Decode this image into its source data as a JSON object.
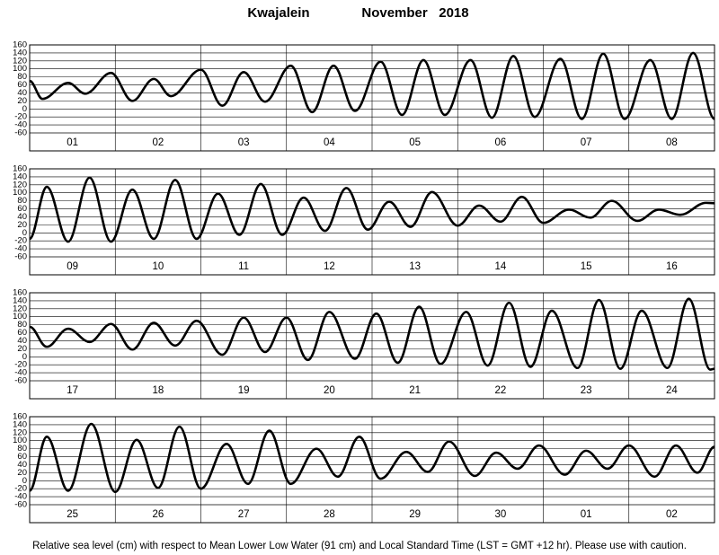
{
  "title": "Kwajalein",
  "subtitle": "November   2018",
  "note": "Relative sea level (cm) with respect to Mean Lower Low Water (91 cm) and Local Standard Time (LST = GMT +12 hr). Please use with caution.",
  "chart_data": [
    {
      "type": "line",
      "color": "#000000",
      "xlim": [
        0,
        8
      ],
      "ylim": [
        -60,
        160
      ],
      "yticks": [
        -60,
        -40,
        -20,
        0,
        20,
        40,
        60,
        80,
        100,
        120,
        140,
        160
      ],
      "categories": [
        "01",
        "02",
        "03",
        "04",
        "05",
        "06",
        "07",
        "08"
      ],
      "x": [
        0,
        0.15,
        0.45,
        0.65,
        0.95,
        1.2,
        1.45,
        1.65,
        2.0,
        2.25,
        2.5,
        2.75,
        3.05,
        3.3,
        3.55,
        3.8,
        4.1,
        4.35,
        4.6,
        4.85,
        5.15,
        5.4,
        5.65,
        5.9,
        6.2,
        6.45,
        6.7,
        6.95,
        7.25,
        7.5,
        7.75,
        8.0
      ],
      "values": [
        70,
        25,
        65,
        38,
        90,
        20,
        75,
        32,
        98,
        8,
        92,
        18,
        108,
        -8,
        108,
        -5,
        118,
        -15,
        122,
        -15,
        122,
        -22,
        132,
        -20,
        125,
        -25,
        138,
        -25,
        122,
        -25,
        140,
        -25
      ]
    },
    {
      "type": "line",
      "color": "#000000",
      "xlim": [
        0,
        8
      ],
      "ylim": [
        -60,
        160
      ],
      "yticks": [
        -60,
        -40,
        -20,
        0,
        20,
        40,
        60,
        80,
        100,
        120,
        140,
        160
      ],
      "categories": [
        "09",
        "10",
        "11",
        "12",
        "13",
        "14",
        "15",
        "16"
      ],
      "x": [
        0,
        0.2,
        0.45,
        0.7,
        0.95,
        1.2,
        1.45,
        1.7,
        1.95,
        2.2,
        2.45,
        2.7,
        2.95,
        3.2,
        3.45,
        3.7,
        3.95,
        4.2,
        4.45,
        4.7,
        5.0,
        5.25,
        5.5,
        5.75,
        6.0,
        6.3,
        6.55,
        6.8,
        7.1,
        7.35,
        7.6,
        7.9,
        8.0
      ],
      "values": [
        -15,
        115,
        -22,
        138,
        -22,
        108,
        -15,
        132,
        -15,
        98,
        -5,
        122,
        -5,
        88,
        5,
        112,
        8,
        78,
        15,
        102,
        18,
        68,
        28,
        90,
        25,
        58,
        38,
        80,
        30,
        58,
        45,
        75,
        74
      ]
    },
    {
      "type": "line",
      "color": "#000000",
      "xlim": [
        0,
        8
      ],
      "ylim": [
        -60,
        160
      ],
      "yticks": [
        -60,
        -40,
        -20,
        0,
        20,
        40,
        60,
        80,
        100,
        120,
        140,
        160
      ],
      "categories": [
        "17",
        "18",
        "19",
        "20",
        "21",
        "22",
        "23",
        "24"
      ],
      "x": [
        0,
        0.2,
        0.45,
        0.7,
        0.95,
        1.2,
        1.45,
        1.7,
        1.95,
        2.25,
        2.5,
        2.75,
        3.0,
        3.25,
        3.5,
        3.8,
        4.05,
        4.3,
        4.55,
        4.8,
        5.1,
        5.35,
        5.6,
        5.85,
        6.1,
        6.4,
        6.65,
        6.9,
        7.15,
        7.45,
        7.7,
        7.95,
        8.0
      ],
      "values": [
        75,
        25,
        70,
        37,
        82,
        18,
        85,
        28,
        90,
        5,
        98,
        12,
        98,
        -8,
        112,
        -5,
        108,
        -15,
        125,
        -18,
        112,
        -22,
        135,
        -25,
        115,
        -28,
        142,
        -30,
        115,
        -28,
        145,
        -32,
        -30
      ]
    },
    {
      "type": "line",
      "color": "#000000",
      "xlim": [
        0,
        8
      ],
      "ylim": [
        -60,
        160
      ],
      "yticks": [
        -60,
        -40,
        -20,
        0,
        20,
        40,
        60,
        80,
        100,
        120,
        140,
        160
      ],
      "categories": [
        "25",
        "26",
        "27",
        "28",
        "29",
        "30",
        "01",
        "02"
      ],
      "x": [
        0,
        0.2,
        0.45,
        0.72,
        1.0,
        1.25,
        1.5,
        1.75,
        2.0,
        2.3,
        2.55,
        2.8,
        3.05,
        3.35,
        3.6,
        3.85,
        4.1,
        4.4,
        4.65,
        4.9,
        5.2,
        5.45,
        5.7,
        5.95,
        6.25,
        6.5,
        6.75,
        7.0,
        7.3,
        7.55,
        7.8,
        8.0
      ],
      "values": [
        -25,
        110,
        -25,
        142,
        -28,
        102,
        -18,
        135,
        -20,
        92,
        -8,
        125,
        -8,
        80,
        10,
        110,
        5,
        72,
        22,
        98,
        12,
        70,
        30,
        88,
        15,
        75,
        30,
        88,
        10,
        88,
        20,
        85
      ]
    }
  ]
}
